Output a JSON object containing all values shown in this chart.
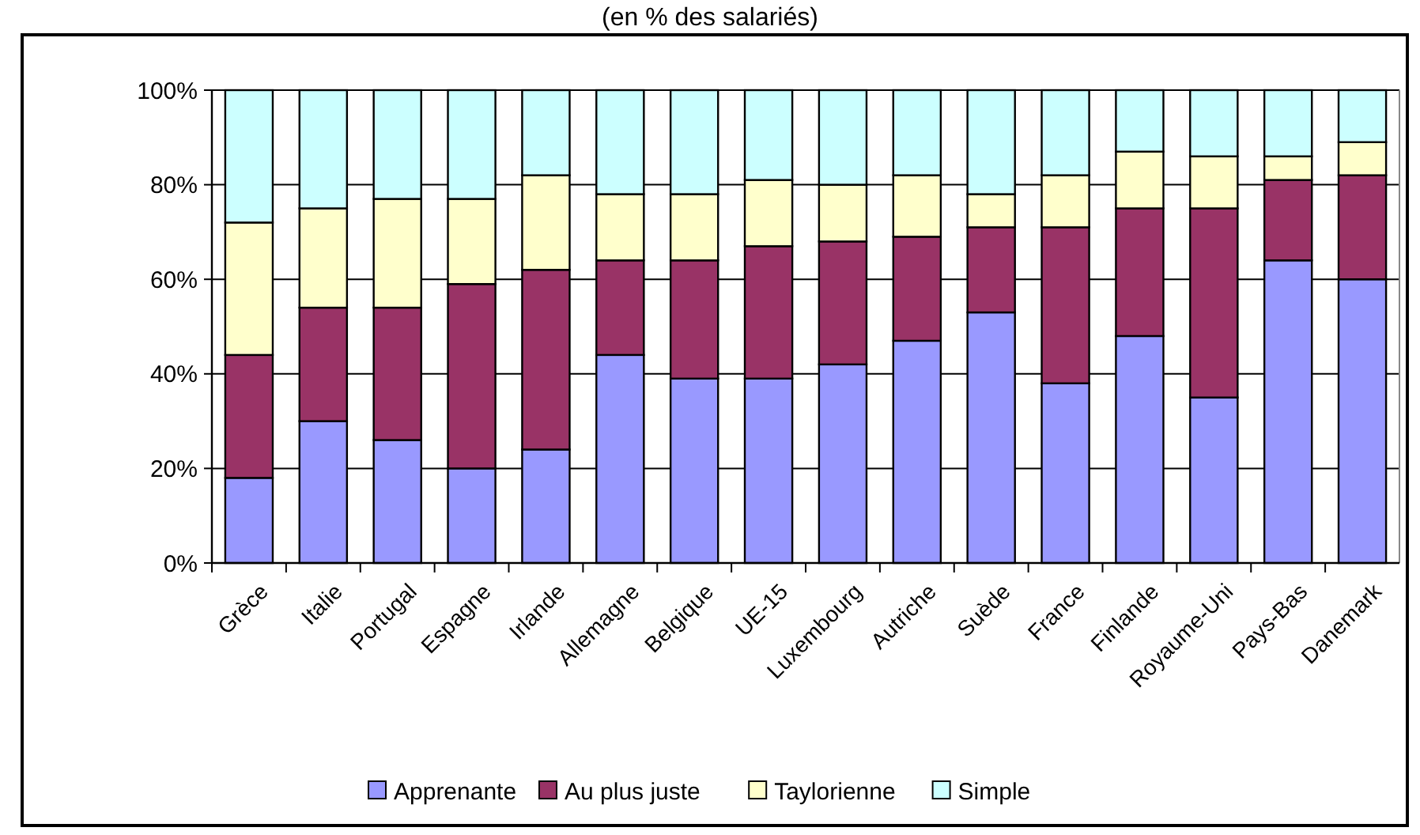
{
  "chart_data": {
    "type": "bar",
    "stacked": true,
    "subtitle": "(en % des salariés)",
    "categories": [
      "Grèce",
      "Italie",
      "Portugal",
      "Espagne",
      "Irlande",
      "Allemagne",
      "Belgique",
      "UE-15",
      "Luxembourg",
      "Autriche",
      "Suède",
      "France",
      "Finlande",
      "Royaume-Uni",
      "Pays-Bas",
      "Danemark"
    ],
    "series": [
      {
        "name": "Apprenante",
        "color": "#9999ff",
        "values": [
          18,
          30,
          26,
          20,
          24,
          44,
          39,
          39,
          42,
          47,
          53,
          38,
          48,
          35,
          64,
          60
        ]
      },
      {
        "name": "Au plus juste",
        "color": "#993366",
        "values": [
          26,
          24,
          28,
          39,
          38,
          20,
          25,
          28,
          26,
          22,
          18,
          33,
          27,
          40,
          17,
          22
        ]
      },
      {
        "name": "Taylorienne",
        "color": "#ffffcc",
        "values": [
          28,
          21,
          23,
          18,
          20,
          14,
          14,
          14,
          12,
          13,
          7,
          11,
          12,
          11,
          5,
          7
        ]
      },
      {
        "name": "Simple",
        "color": "#ccffff",
        "values": [
          28,
          25,
          23,
          23,
          18,
          22,
          22,
          19,
          20,
          18,
          22,
          18,
          13,
          14,
          14,
          11
        ]
      }
    ],
    "ylim": [
      0,
      100
    ],
    "yticks": [
      {
        "value": 0,
        "label": "0%"
      },
      {
        "value": 20,
        "label": "20%"
      },
      {
        "value": 40,
        "label": "40%"
      },
      {
        "value": 60,
        "label": "60%"
      },
      {
        "value": 80,
        "label": "80%"
      },
      {
        "value": 100,
        "label": "100%"
      }
    ],
    "grid": "y",
    "legend": "bottom"
  }
}
